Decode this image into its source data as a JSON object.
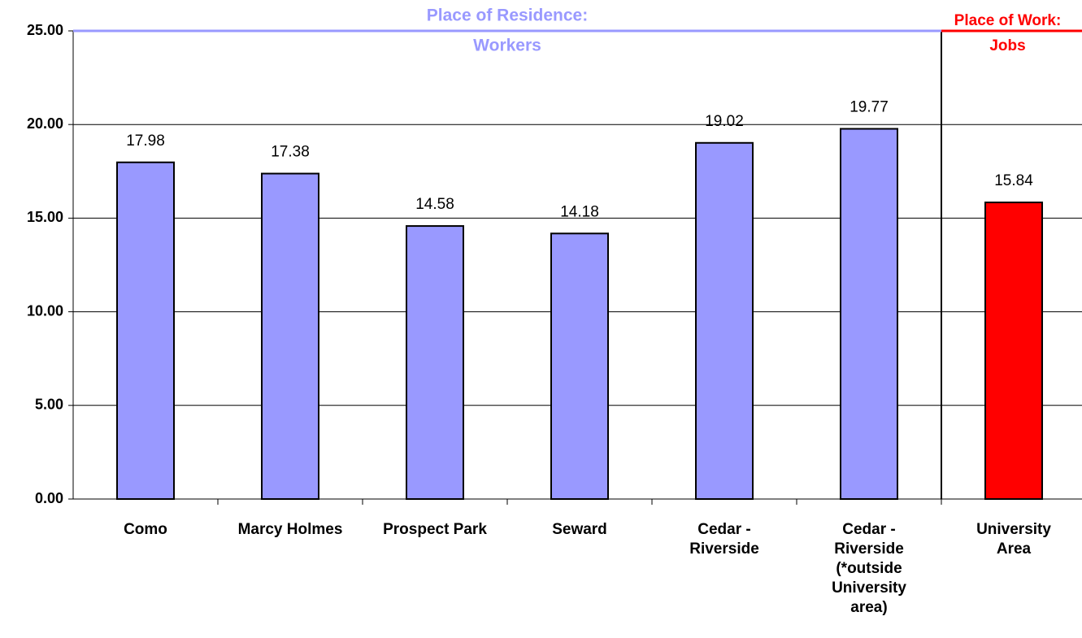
{
  "chart_data": {
    "type": "bar",
    "categories": [
      "Como",
      "Marcy Holmes",
      "Prospect Park",
      "Seward",
      "Cedar - Riverside",
      "Cedar - Riverside (*outside University area)",
      "University Area"
    ],
    "values": [
      17.98,
      17.38,
      14.58,
      14.18,
      19.02,
      19.77,
      15.84
    ],
    "colors": [
      "#9999ff",
      "#9999ff",
      "#9999ff",
      "#9999ff",
      "#9999ff",
      "#9999ff",
      "#ff0000"
    ],
    "ylim": [
      0,
      25
    ],
    "yticks": [
      {
        "value": 0,
        "label": "0.00"
      },
      {
        "value": 5,
        "label": "5.00"
      },
      {
        "value": 10,
        "label": "10.00"
      },
      {
        "value": 15,
        "label": "15.00"
      },
      {
        "value": 20,
        "label": "20.00"
      },
      {
        "value": 25,
        "label": "25.00"
      }
    ],
    "grid": true,
    "annotations": [
      {
        "lines": [
          "Place of Residence:",
          "Workers"
        ],
        "color": "#9999ff"
      },
      {
        "lines": [
          "Place of Work:",
          "Jobs"
        ],
        "color": "#ff0000"
      }
    ]
  }
}
